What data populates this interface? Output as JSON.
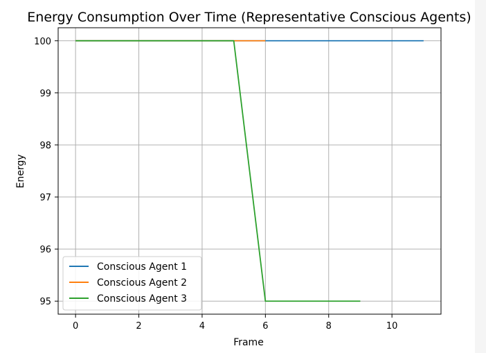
{
  "chart_data": {
    "type": "line",
    "title": "Energy Consumption Over Time (Representative Conscious Agents)",
    "xlabel": "Frame",
    "ylabel": "Energy",
    "xlim": [
      -0.55,
      11.55
    ],
    "ylim": [
      94.75,
      100.25
    ],
    "xticks": [
      0,
      2,
      4,
      6,
      8,
      10
    ],
    "yticks": [
      95,
      96,
      97,
      98,
      99,
      100
    ],
    "grid": true,
    "legend_position": "lower-left",
    "series": [
      {
        "name": "Conscious Agent 1",
        "color": "#1f77b4",
        "x": [
          0,
          1,
          2,
          3,
          4,
          5,
          6,
          7,
          8,
          9,
          10,
          11
        ],
        "y": [
          100,
          100,
          100,
          100,
          100,
          100,
          100,
          100,
          100,
          100,
          100,
          100
        ]
      },
      {
        "name": "Conscious Agent 2",
        "color": "#ff7f0e",
        "x": [
          0,
          1,
          2,
          3,
          4,
          5,
          6
        ],
        "y": [
          100,
          100,
          100,
          100,
          100,
          100,
          100
        ]
      },
      {
        "name": "Conscious Agent 3",
        "color": "#2ca02c",
        "x": [
          0,
          1,
          2,
          3,
          4,
          5,
          6,
          7,
          8,
          9
        ],
        "y": [
          100,
          100,
          100,
          100,
          100,
          100,
          95,
          95,
          95,
          95
        ]
      }
    ]
  }
}
